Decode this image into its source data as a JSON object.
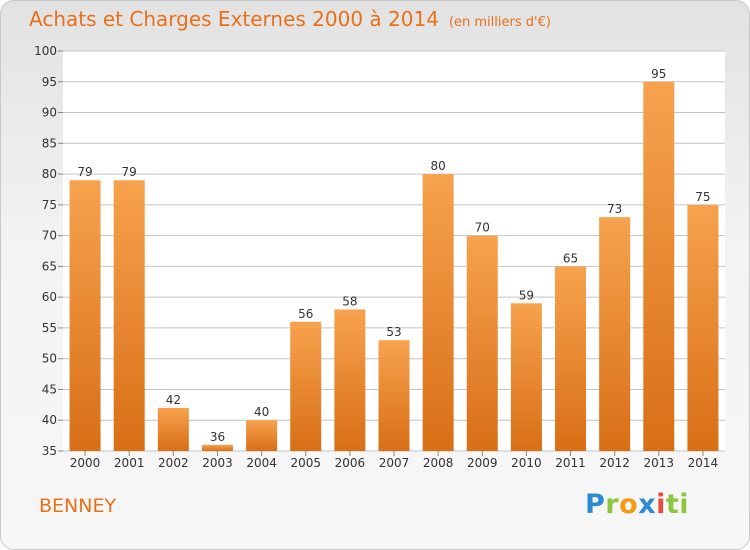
{
  "title": "Achats et Charges Externes 2000 à 2014",
  "unit": "(en milliers d'€)",
  "commune": "BENNEY",
  "logo": "Proxiti",
  "colors": {
    "bar_light": "#f7a24e",
    "bar_dark": "#d86f16",
    "title": "#e8701a",
    "grid": "#c4c4c4",
    "axis_text": "#333333"
  },
  "chart_data": {
    "type": "bar",
    "title": "Achats et Charges Externes 2000 à 2014",
    "subtitle": "(en milliers d'€)",
    "categories": [
      "2000",
      "2001",
      "2002",
      "2003",
      "2004",
      "2005",
      "2006",
      "2007",
      "2008",
      "2009",
      "2010",
      "2011",
      "2012",
      "2013",
      "2014"
    ],
    "values": [
      79,
      79,
      42,
      36,
      40,
      56,
      58,
      53,
      80,
      70,
      59,
      65,
      73,
      95,
      75
    ],
    "ylim": [
      35,
      100
    ],
    "yticks": [
      35,
      40,
      45,
      50,
      55,
      60,
      65,
      70,
      75,
      80,
      85,
      90,
      95,
      100
    ],
    "grid": true,
    "data_labels": true,
    "xlabel": "",
    "ylabel": ""
  }
}
